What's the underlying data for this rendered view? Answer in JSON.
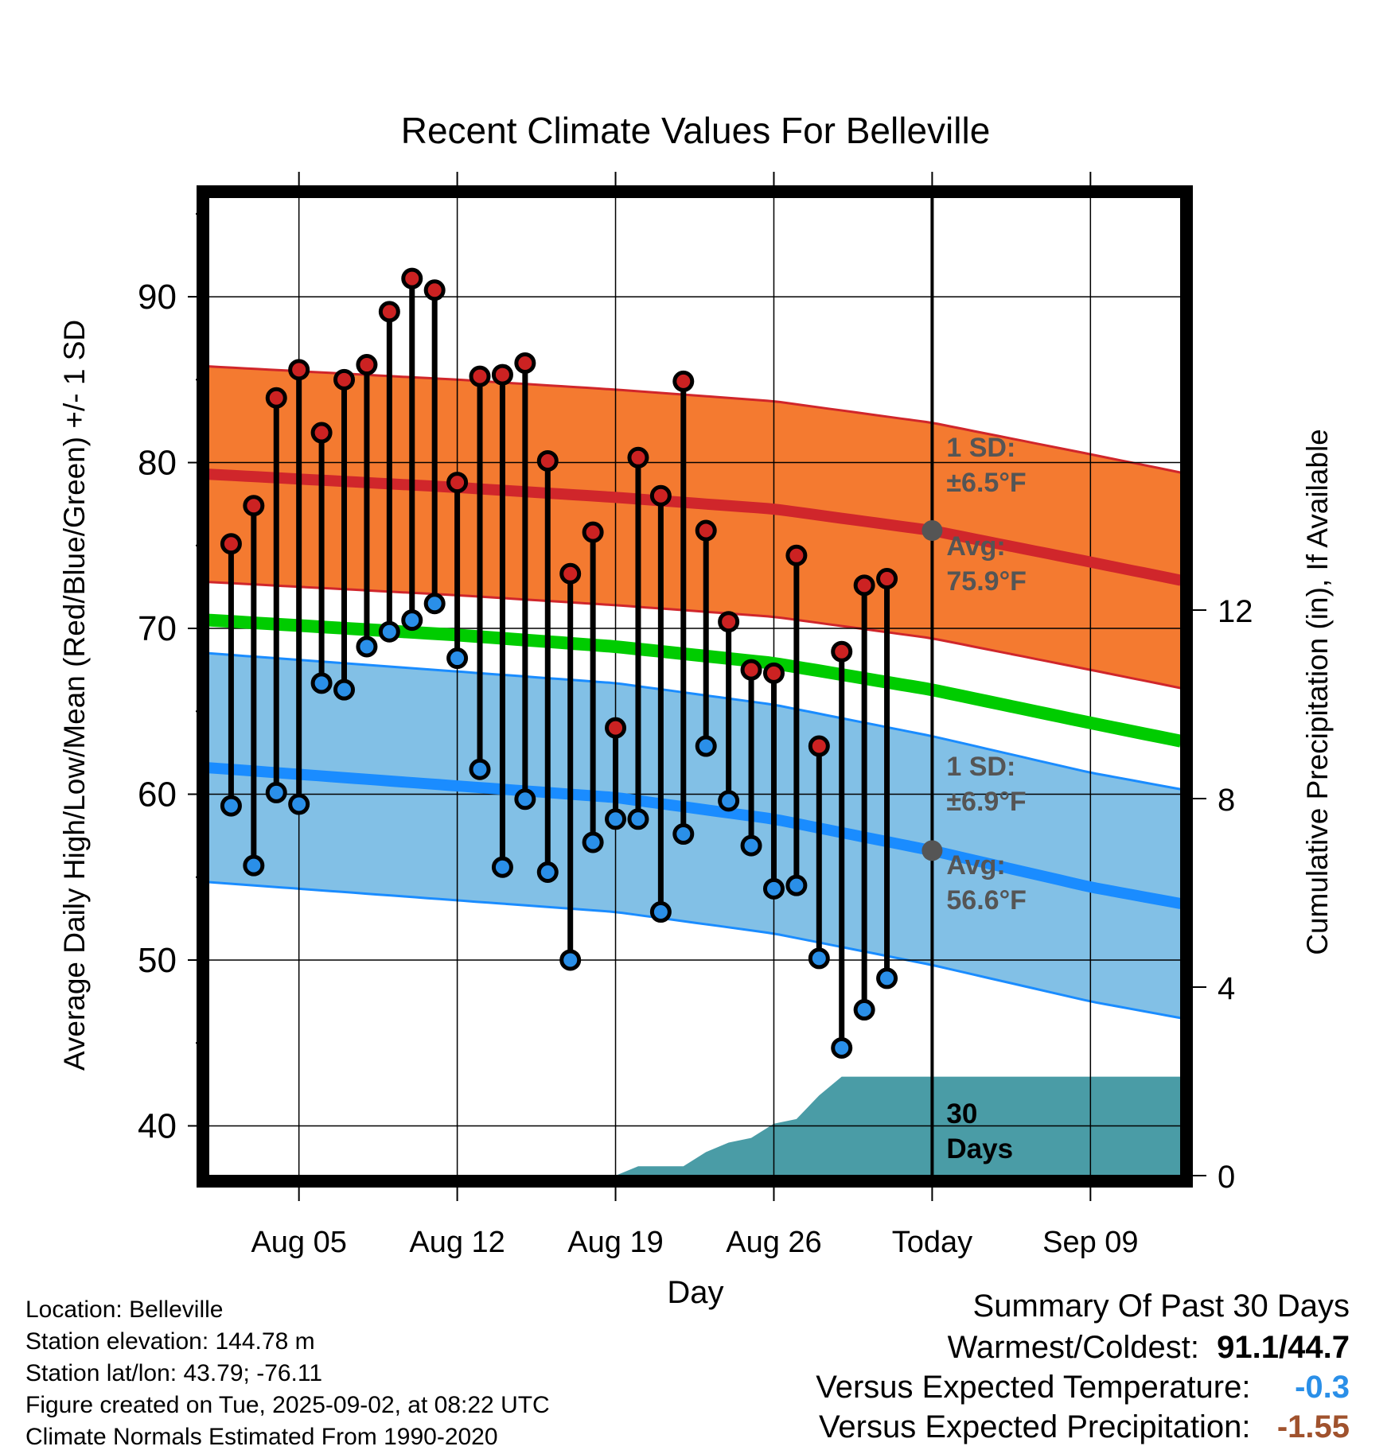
{
  "chart_data": {
    "type": "line",
    "title": "Recent Climate Values For Belleville",
    "xlabel": "Day",
    "ylabel": "Average Daily High/Low/Mean (Red/Blue/Green) +/- 1 SD",
    "y2label": "Cumulative Precipitation (in), If Available",
    "ylim": [
      37,
      96
    ],
    "y2lim": [
      0,
      20.76
    ],
    "xlim": [
      "2025-08-01",
      "2025-09-13"
    ],
    "grid": true,
    "x_tick_labels": [
      "Aug 05",
      "Aug 12",
      "Aug 19",
      "Aug 26",
      "Today",
      "Sep 09"
    ],
    "x_tick_dates": [
      "2025-08-05",
      "2025-08-12",
      "2025-08-19",
      "2025-08-26",
      "2025-09-02",
      "2025-09-09"
    ],
    "y_ticks": [
      40,
      50,
      60,
      70,
      80,
      90
    ],
    "y2_ticks": [
      0,
      4,
      8,
      12
    ],
    "today": "2025-09-02",
    "normals": {
      "dates": [
        "2025-08-01",
        "2025-08-12",
        "2025-08-19",
        "2025-08-26",
        "2025-09-02",
        "2025-09-09",
        "2025-09-13"
      ],
      "high_mean": [
        79.3,
        78.5,
        77.9,
        77.2,
        75.9,
        74.0,
        72.9
      ],
      "high_sd": 6.5,
      "low_mean": [
        61.6,
        60.5,
        59.8,
        58.5,
        56.6,
        54.4,
        53.4
      ],
      "low_sd": 6.9,
      "mean": [
        70.5,
        69.6,
        68.9,
        67.9,
        66.3,
        64.3,
        63.2
      ]
    },
    "series": [
      {
        "name": "High",
        "x": [
          "2025-08-02",
          "2025-08-03",
          "2025-08-04",
          "2025-08-05",
          "2025-08-06",
          "2025-08-07",
          "2025-08-08",
          "2025-08-09",
          "2025-08-10",
          "2025-08-11",
          "2025-08-12",
          "2025-08-13",
          "2025-08-14",
          "2025-08-15",
          "2025-08-16",
          "2025-08-17",
          "2025-08-18",
          "2025-08-19",
          "2025-08-20",
          "2025-08-21",
          "2025-08-22",
          "2025-08-23",
          "2025-08-24",
          "2025-08-25",
          "2025-08-26",
          "2025-08-27",
          "2025-08-28",
          "2025-08-29",
          "2025-08-30",
          "2025-08-31",
          "2025-09-01"
        ],
        "values": [
          75.1,
          77.4,
          83.9,
          85.6,
          81.8,
          85.0,
          85.9,
          89.1,
          91.1,
          90.4,
          78.8,
          85.2,
          85.3,
          86.0,
          80.1,
          73.3,
          75.8,
          64.0,
          80.3,
          78.0,
          84.9,
          75.9,
          70.4,
          67.5,
          67.3,
          74.4,
          62.9,
          68.6,
          72.6,
          73.0,
          null
        ]
      },
      {
        "name": "Low",
        "x": [
          "2025-08-02",
          "2025-08-03",
          "2025-08-04",
          "2025-08-05",
          "2025-08-06",
          "2025-08-07",
          "2025-08-08",
          "2025-08-09",
          "2025-08-10",
          "2025-08-11",
          "2025-08-12",
          "2025-08-13",
          "2025-08-14",
          "2025-08-15",
          "2025-08-16",
          "2025-08-17",
          "2025-08-18",
          "2025-08-19",
          "2025-08-20",
          "2025-08-21",
          "2025-08-22",
          "2025-08-23",
          "2025-08-24",
          "2025-08-25",
          "2025-08-26",
          "2025-08-27",
          "2025-08-28",
          "2025-08-29",
          "2025-08-30",
          "2025-08-31",
          "2025-09-01"
        ],
        "values": [
          59.3,
          55.7,
          60.1,
          59.4,
          66.7,
          66.3,
          68.9,
          69.8,
          70.5,
          71.5,
          68.2,
          61.5,
          55.6,
          59.7,
          55.3,
          50.0,
          57.1,
          58.5,
          58.5,
          52.9,
          57.6,
          62.9,
          59.6,
          56.9,
          54.3,
          54.5,
          50.1,
          44.7,
          47.0,
          48.9,
          null
        ]
      },
      {
        "name": "Precipitation",
        "x": [
          "2025-08-19",
          "2025-08-20",
          "2025-08-21",
          "2025-08-22",
          "2025-08-23",
          "2025-08-24",
          "2025-08-25",
          "2025-08-26",
          "2025-08-27",
          "2025-08-28",
          "2025-08-29",
          "2025-08-30",
          "2025-09-02",
          "2025-09-13"
        ],
        "values": [
          0,
          0.2,
          0.2,
          0.2,
          0.5,
          0.7,
          0.8,
          1.1,
          1.2,
          1.7,
          2.1,
          2.1,
          2.1,
          2.1
        ]
      }
    ],
    "annotations": {
      "high_sd_label": "1 SD:",
      "high_sd_value": "±6.5°F",
      "high_avg_label": "Avg:",
      "high_avg_value": "75.9°F",
      "low_sd_label": "1 SD:",
      "low_sd_value": "±6.9°F",
      "low_avg_label": "Avg:",
      "low_avg_value": "56.6°F",
      "precip_label_line1": "30",
      "precip_label_line2": "Days"
    },
    "colors": {
      "high_band": "#f47a30",
      "high_line": "#d0262b",
      "low_band": "#82c0e6",
      "low_line": "#1a8cff",
      "mean_line": "#00cc00",
      "precip": "#4a9ca6",
      "high_marker": "#cc2222",
      "low_marker": "#2a8fe8",
      "annotation_text": "#555555",
      "temp_anomaly": "#2a8fe8",
      "precip_anomaly": "#a0522d"
    }
  },
  "info": {
    "location": "Location: Belleville",
    "elevation": "Station elevation: 144.78 m",
    "latlon": "Station lat/lon: 43.79; -76.11",
    "created": "Figure created on Tue, 2025-09-02, at 08:22 UTC",
    "normals": "Climate Normals Estimated From 1990-2020"
  },
  "summary": {
    "title": "Summary Of Past 30 Days",
    "warm_cold_label": "Warmest/Coldest:",
    "warm_cold_value": "91.1/44.7",
    "temp_label": "Versus Expected Temperature:",
    "temp_value": "-0.3",
    "precip_label": "Versus Expected Precipitation:",
    "precip_value": "-1.55"
  }
}
